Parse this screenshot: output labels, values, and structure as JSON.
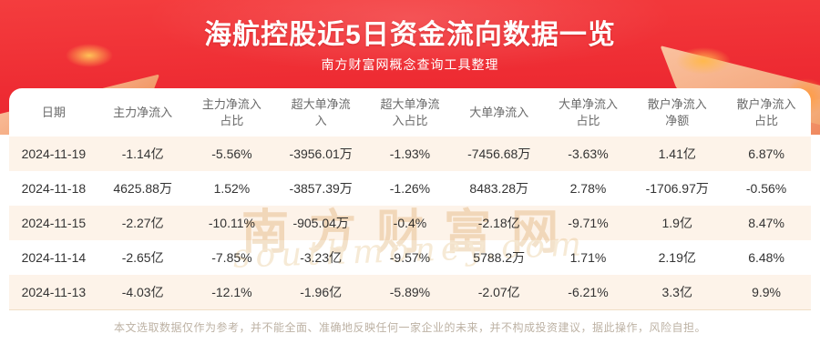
{
  "header": {
    "title": "海航控股近5日资金流向数据一览",
    "subtitle": "南方财富网概念查询工具整理"
  },
  "chart_data": {
    "type": "table",
    "title": "海航控股近5日资金流向数据一览",
    "subtitle": "南方财富网概念查询工具整理",
    "columns": [
      "日期",
      "主力净流入",
      "主力净流入\n占比",
      "超大单净流\n入",
      "超大单净流\n入占比",
      "大单净流入",
      "大单净流入\n占比",
      "散户净流入\n净额",
      "散户净流入\n占比"
    ],
    "rows": [
      [
        "2024-11-19",
        "-1.14亿",
        "-5.56%",
        "-3956.01万",
        "-1.93%",
        "-7456.68万",
        "-3.63%",
        "1.41亿",
        "6.87%"
      ],
      [
        "2024-11-18",
        "4625.88万",
        "1.52%",
        "-3857.39万",
        "-1.26%",
        "8483.28万",
        "2.78%",
        "-1706.97万",
        "-0.56%"
      ],
      [
        "2024-11-15",
        "-2.27亿",
        "-10.11%",
        "-905.04万",
        "-0.4%",
        "-2.18亿",
        "-9.71%",
        "1.9亿",
        "8.47%"
      ],
      [
        "2024-11-14",
        "-2.65亿",
        "-7.85%",
        "-3.23亿",
        "-9.57%",
        "5788.2万",
        "1.71%",
        "2.19亿",
        "6.48%"
      ],
      [
        "2024-11-13",
        "-4.03亿",
        "-12.1%",
        "-1.96亿",
        "-5.89%",
        "-2.07亿",
        "-6.21%",
        "3.3亿",
        "9.9%"
      ]
    ]
  },
  "watermark": {
    "line1": "南方财富网",
    "line2": "southmoney.com"
  },
  "footer": {
    "disclaimer": "本文选取数据仅作为参考，并不能全面、准确地反映任何一家企业的未来，并不构成投资建议，据此操作，风险自担。"
  },
  "colors": {
    "banner_red": "#ee2c33",
    "banner_red_light": "#f43d3e",
    "stripe": "#fdf3e9",
    "header_text": "#6a6a6a",
    "cell_text": "#333333",
    "disclaimer_text": "#bdb2a4",
    "watermark_tan": "#f1ddc2"
  }
}
